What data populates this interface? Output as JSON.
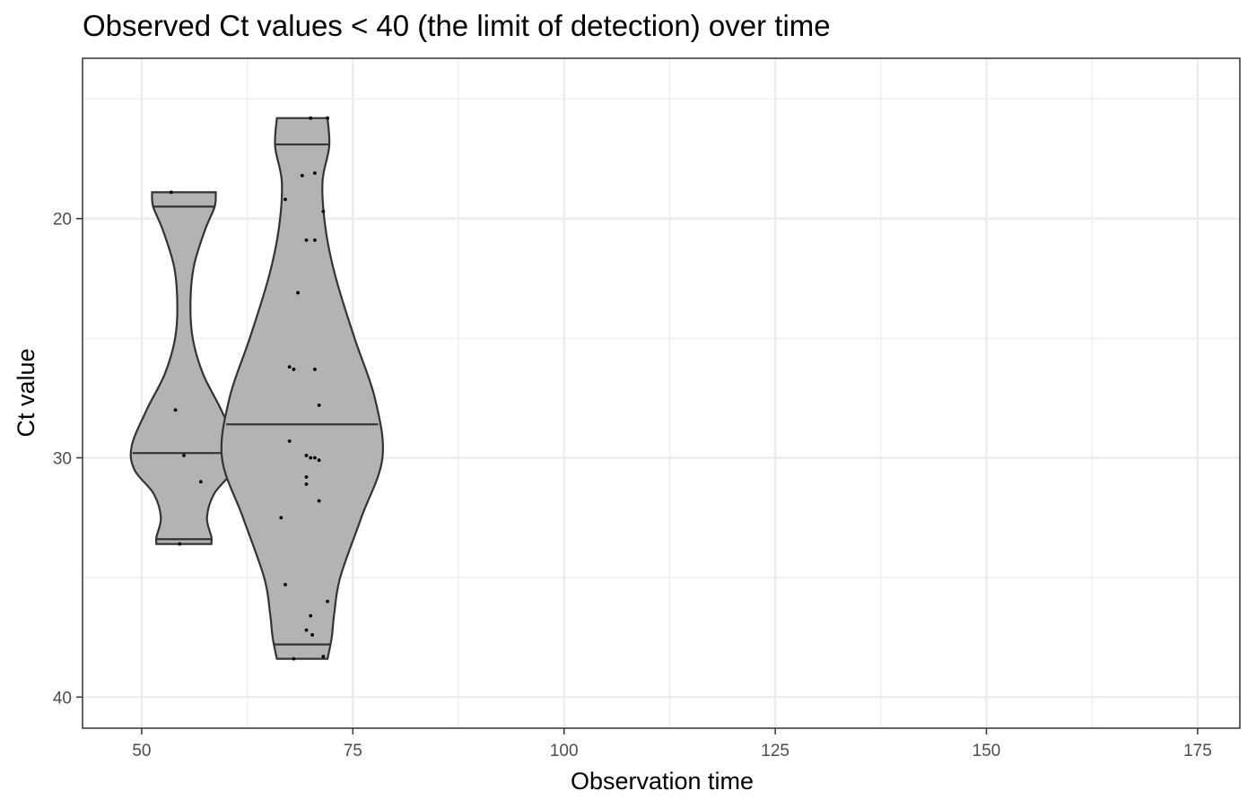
{
  "chart_data": {
    "type": "violin",
    "title": "Observed Ct values < 40 (the limit of detection) over time",
    "xlabel": "Observation time",
    "ylabel": "Ct value",
    "xlim": [
      43,
      180
    ],
    "ylim": [
      41.3,
      13.3
    ],
    "y_reversed": true,
    "x_ticks": [
      50,
      75,
      100,
      125,
      150,
      175
    ],
    "y_ticks": [
      20,
      30,
      40
    ],
    "grid": true,
    "fill_color": "#b3b3b3",
    "outline_color": "#333333",
    "point_color": "#000000",
    "series": [
      {
        "x": 55,
        "halfwidth": 6.5,
        "quantiles": [
          19.5,
          29.8,
          33.4
        ],
        "profile": [
          [
            18.9,
            0.58
          ],
          [
            19.5,
            0.56
          ],
          [
            20.5,
            0.38
          ],
          [
            22,
            0.18
          ],
          [
            23.5,
            0.12
          ],
          [
            25,
            0.16
          ],
          [
            26.5,
            0.35
          ],
          [
            28,
            0.68
          ],
          [
            29.5,
            0.95
          ],
          [
            30.5,
            0.9
          ],
          [
            31.5,
            0.55
          ],
          [
            32.5,
            0.42
          ],
          [
            33.3,
            0.5
          ],
          [
            33.6,
            0.5
          ]
        ],
        "points": [
          [
            53.5,
            18.9
          ],
          [
            54,
            28
          ],
          [
            55,
            29.9
          ],
          [
            57,
            31
          ],
          [
            54.5,
            33.6
          ]
        ]
      },
      {
        "x": 69,
        "halfwidth": 10,
        "quantiles": [
          16.9,
          28.6,
          37.8
        ],
        "profile": [
          [
            15.8,
            0.3
          ],
          [
            17,
            0.32
          ],
          [
            18.5,
            0.24
          ],
          [
            20.5,
            0.28
          ],
          [
            22.5,
            0.4
          ],
          [
            25,
            0.62
          ],
          [
            27.5,
            0.86
          ],
          [
            30,
            0.95
          ],
          [
            32.5,
            0.7
          ],
          [
            35,
            0.45
          ],
          [
            36.5,
            0.38
          ],
          [
            37.5,
            0.35
          ],
          [
            38.4,
            0.3
          ]
        ],
        "points": [
          [
            70,
            15.8
          ],
          [
            72,
            15.8
          ],
          [
            69,
            18.2
          ],
          [
            70.5,
            18.1
          ],
          [
            67,
            19.2
          ],
          [
            71.5,
            19.7
          ],
          [
            69.5,
            20.9
          ],
          [
            70.5,
            20.9
          ],
          [
            68.5,
            23.1
          ],
          [
            67.5,
            26.2
          ],
          [
            68,
            26.3
          ],
          [
            70.5,
            26.3
          ],
          [
            71,
            27.8
          ],
          [
            67.5,
            29.3
          ],
          [
            69.5,
            29.9
          ],
          [
            70,
            30.0
          ],
          [
            70.5,
            30.0
          ],
          [
            71,
            30.1
          ],
          [
            69.5,
            30.8
          ],
          [
            71,
            31.8
          ],
          [
            69.5,
            31.1
          ],
          [
            66.5,
            32.5
          ],
          [
            67,
            35.3
          ],
          [
            72,
            36
          ],
          [
            70,
            36.6
          ],
          [
            69.5,
            37.2
          ],
          [
            70.2,
            37.4
          ],
          [
            71.5,
            38.3
          ],
          [
            68,
            38.4
          ]
        ]
      }
    ]
  }
}
